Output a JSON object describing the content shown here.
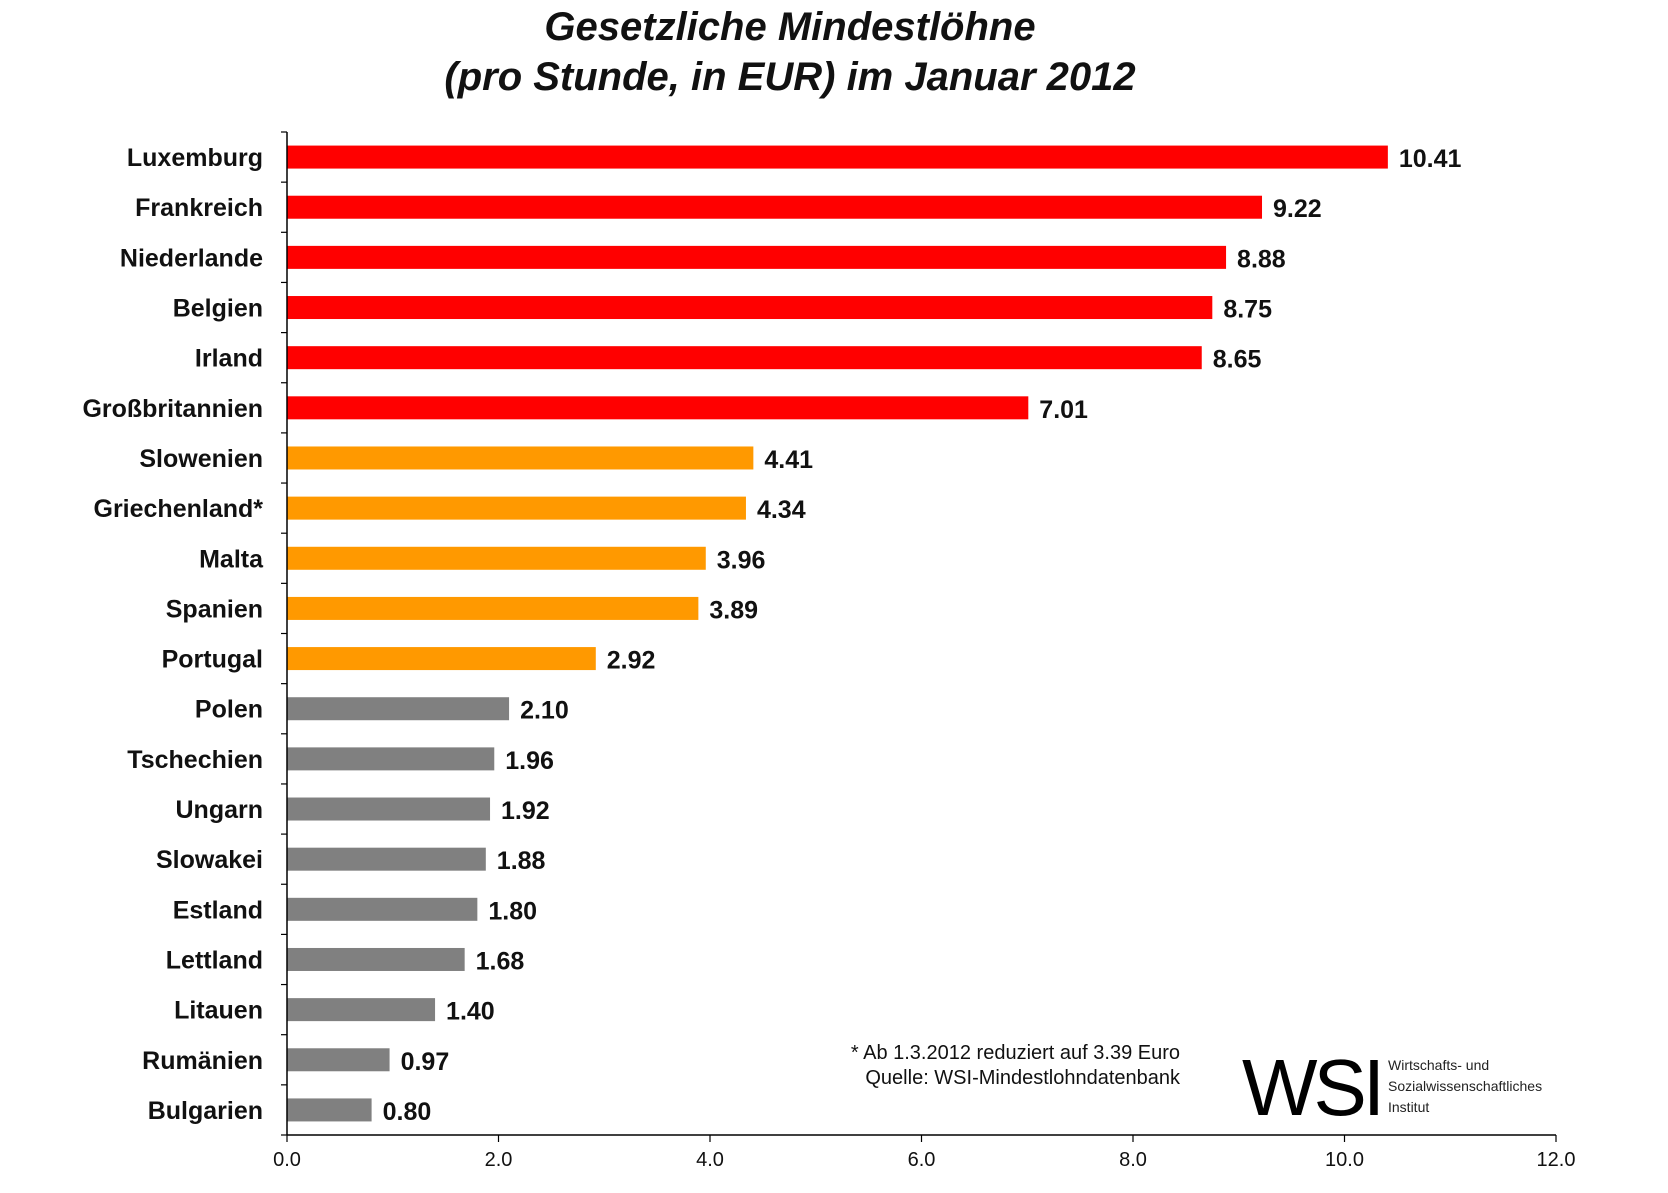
{
  "chart_data": {
    "type": "bar",
    "orientation": "horizontal",
    "title": [
      "Gesetzliche Mindestlöhne",
      "(pro Stunde, in EUR) im Januar 2012"
    ],
    "categories": [
      "Luxemburg",
      "Frankreich",
      "Niederlande",
      "Belgien",
      "Irland",
      "Großbritannien",
      "Slowenien",
      "Griechenland*",
      "Malta",
      "Spanien",
      "Portugal",
      "Polen",
      "Tschechien",
      "Ungarn",
      "Slowakei",
      "Estland",
      "Lettland",
      "Litauen",
      "Rumänien",
      "Bulgarien"
    ],
    "values": [
      10.41,
      9.22,
      8.88,
      8.75,
      8.65,
      7.01,
      4.41,
      4.34,
      3.96,
      3.89,
      2.92,
      2.1,
      1.96,
      1.92,
      1.88,
      1.8,
      1.68,
      1.4,
      0.97,
      0.8
    ],
    "value_labels": [
      "10.41",
      "9.22",
      "8.88",
      "8.75",
      "8.65",
      "7.01",
      "4.41",
      "4.34",
      "3.96",
      "3.89",
      "2.92",
      "2.10",
      "1.96",
      "1.92",
      "1.88",
      "1.80",
      "1.68",
      "1.40",
      "0.97",
      "0.80"
    ],
    "bar_groups": [
      "red",
      "red",
      "red",
      "red",
      "red",
      "red",
      "orange",
      "orange",
      "orange",
      "orange",
      "orange",
      "gray",
      "gray",
      "gray",
      "gray",
      "gray",
      "gray",
      "gray",
      "gray",
      "gray"
    ],
    "colors": {
      "red": "#ff0000",
      "orange": "#ff9900",
      "gray": "#808080"
    },
    "xlim": [
      0,
      12
    ],
    "xticks": [
      "0.0",
      "2.0",
      "4.0",
      "6.0",
      "8.0",
      "10.0",
      "12.0"
    ],
    "grid": false,
    "xlabel": "",
    "ylabel": ""
  },
  "notes": {
    "footnote": "* Ab 1.3.2012 reduziert auf 3.39 Euro",
    "source": "Quelle: WSI-Mindestlohndatenbank"
  },
  "logo": {
    "abbr": "WSI",
    "lines": [
      "Wirtschafts- und",
      "Sozialwissenschaftliches",
      "Institut"
    ]
  }
}
